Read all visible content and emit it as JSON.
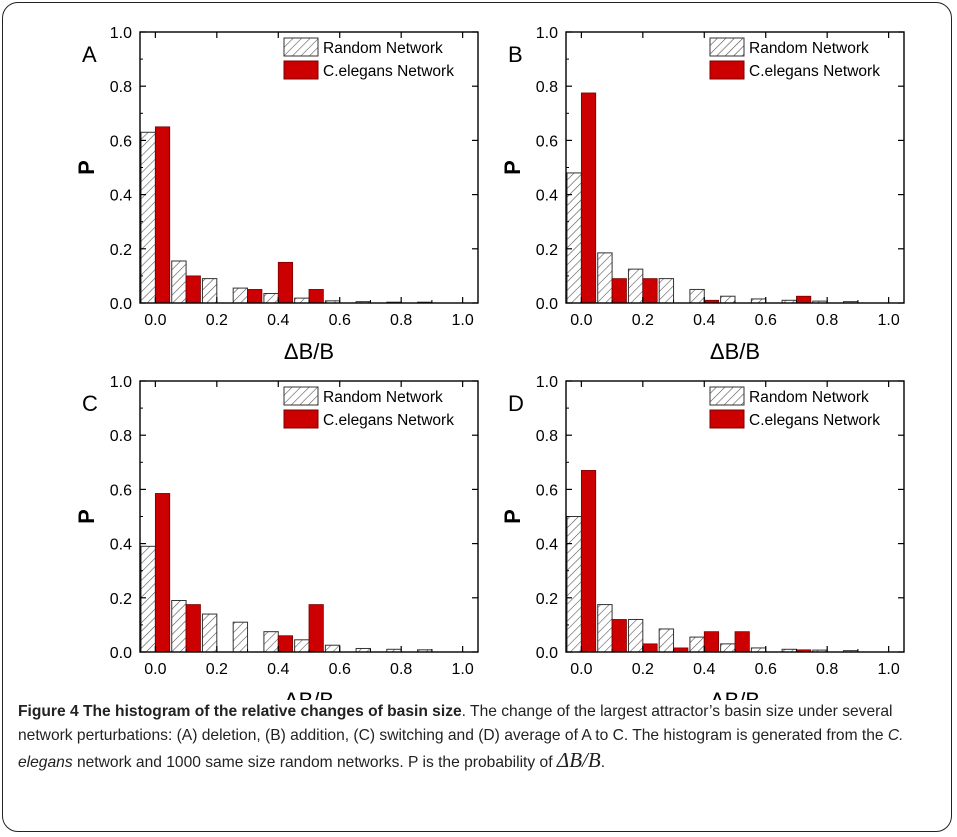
{
  "colors": {
    "random": "#ffffff",
    "random_hatch": "#555555",
    "celegans": "#cc0000",
    "axis": "#000000"
  },
  "chart_data": [
    {
      "type": "bar",
      "panel_label": "A",
      "xlabel": "ΔB/B",
      "ylabel": "P",
      "xlim": [
        -0.05,
        1.05
      ],
      "ylim": [
        0,
        1.0
      ],
      "xticks": [
        "0.0",
        "0.2",
        "0.4",
        "0.6",
        "0.8",
        "1.0"
      ],
      "yticks": [
        "0.0",
        "0.2",
        "0.4",
        "0.6",
        "0.8",
        "1.0"
      ],
      "legend": "top-right",
      "x": [
        0.0,
        0.1,
        0.2,
        0.3,
        0.4,
        0.5,
        0.6,
        0.7,
        0.8,
        0.9
      ],
      "series": [
        {
          "name": "Random Network",
          "values": [
            0.63,
            0.155,
            0.09,
            0.055,
            0.035,
            0.018,
            0.008,
            0.005,
            0.003,
            0.003
          ]
        },
        {
          "name": "C.elegans Network",
          "values": [
            0.65,
            0.1,
            0,
            0.05,
            0.15,
            0.05,
            0,
            0,
            0,
            0
          ]
        }
      ]
    },
    {
      "type": "bar",
      "panel_label": "B",
      "xlabel": "ΔB/B",
      "ylabel": "P",
      "xlim": [
        -0.05,
        1.05
      ],
      "ylim": [
        0,
        1.0
      ],
      "xticks": [
        "0.0",
        "0.2",
        "0.4",
        "0.6",
        "0.8",
        "1.0"
      ],
      "yticks": [
        "0.0",
        "0.2",
        "0.4",
        "0.6",
        "0.8",
        "1.0"
      ],
      "legend": "top-right",
      "x": [
        0.0,
        0.1,
        0.2,
        0.3,
        0.4,
        0.5,
        0.6,
        0.7,
        0.8,
        0.9
      ],
      "series": [
        {
          "name": "Random Network",
          "values": [
            0.48,
            0.185,
            0.125,
            0.09,
            0.05,
            0.025,
            0.015,
            0.01,
            0.007,
            0.005
          ]
        },
        {
          "name": "C.elegans Network",
          "values": [
            0.775,
            0.09,
            0.09,
            0,
            0.01,
            0,
            0,
            0.025,
            0,
            0
          ]
        }
      ]
    },
    {
      "type": "bar",
      "panel_label": "C",
      "xlabel": "ΔB/B",
      "ylabel": "P",
      "xlim": [
        -0.05,
        1.05
      ],
      "ylim": [
        0,
        1.0
      ],
      "xticks": [
        "0.0",
        "0.2",
        "0.4",
        "0.6",
        "0.8",
        "1.0"
      ],
      "yticks": [
        "0.0",
        "0.2",
        "0.4",
        "0.6",
        "0.8",
        "1.0"
      ],
      "legend": "top-right",
      "x": [
        0.0,
        0.1,
        0.2,
        0.3,
        0.4,
        0.5,
        0.6,
        0.7,
        0.8,
        0.9
      ],
      "series": [
        {
          "name": "Random Network",
          "values": [
            0.39,
            0.19,
            0.14,
            0.11,
            0.075,
            0.045,
            0.025,
            0.013,
            0.01,
            0.008
          ]
        },
        {
          "name": "C.elegans Network",
          "values": [
            0.585,
            0.175,
            0,
            0,
            0.06,
            0.175,
            0,
            0,
            0,
            0
          ]
        }
      ]
    },
    {
      "type": "bar",
      "panel_label": "D",
      "xlabel": "ΔB/B",
      "ylabel": "P",
      "xlim": [
        -0.05,
        1.05
      ],
      "ylim": [
        0,
        1.0
      ],
      "xticks": [
        "0.0",
        "0.2",
        "0.4",
        "0.6",
        "0.8",
        "1.0"
      ],
      "yticks": [
        "0.0",
        "0.2",
        "0.4",
        "0.6",
        "0.8",
        "1.0"
      ],
      "legend": "top-right",
      "x": [
        0.0,
        0.1,
        0.2,
        0.3,
        0.4,
        0.5,
        0.6,
        0.7,
        0.8,
        0.9
      ],
      "series": [
        {
          "name": "Random Network",
          "values": [
            0.5,
            0.175,
            0.12,
            0.085,
            0.055,
            0.03,
            0.015,
            0.01,
            0.007,
            0.005
          ]
        },
        {
          "name": "C.elegans Network",
          "values": [
            0.67,
            0.12,
            0.03,
            0.015,
            0.075,
            0.075,
            0,
            0.008,
            0,
            0
          ]
        }
      ]
    }
  ],
  "caption": {
    "lead": "Figure 4 The histogram of the relative changes of basin size",
    "text1": ". The change of the largest attractor’s basin size under several network perturbations: (A) deletion, (B) addition, (C) switching and (D) average of A to C. The histogram is generated from the ",
    "italic": "C. elegans",
    "text2": " network and 1000 same size random networks. P is the probability of ",
    "math": "ΔB/B",
    "text3": "."
  }
}
